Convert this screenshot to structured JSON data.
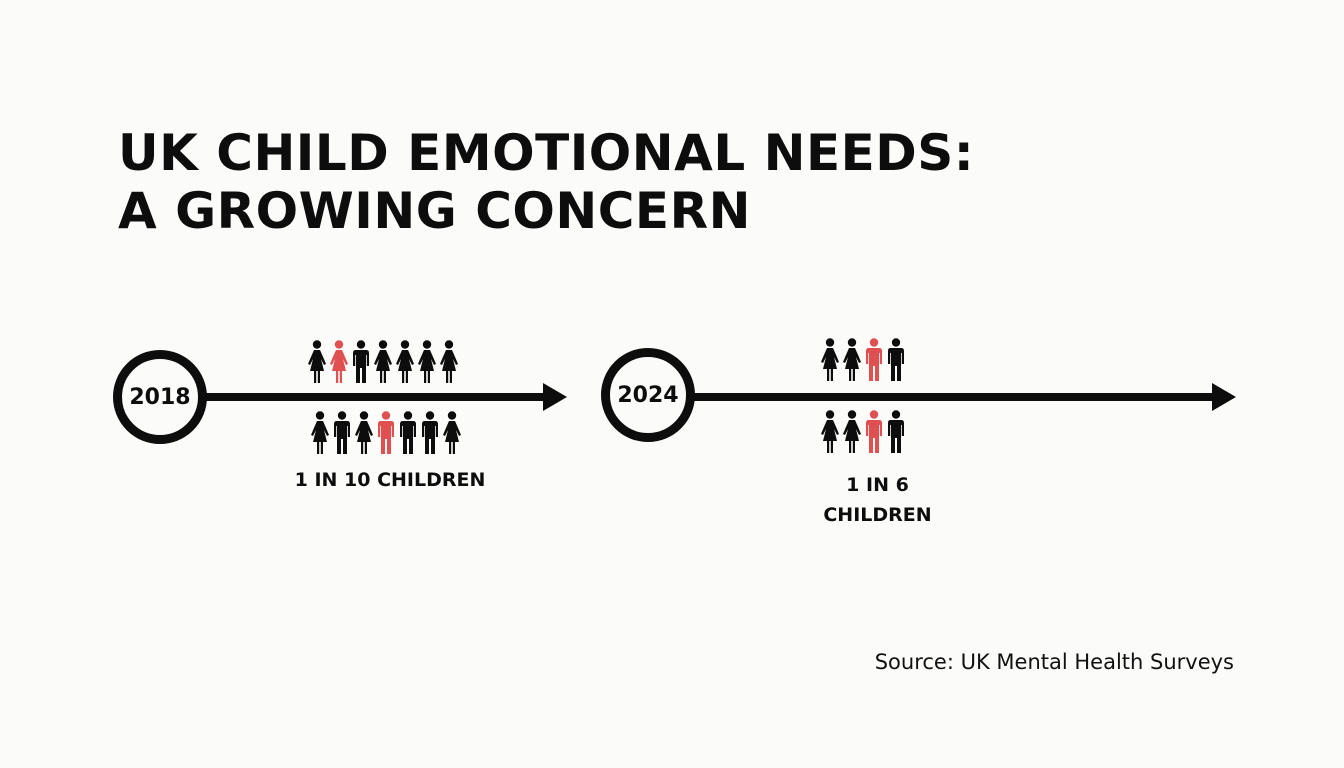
{
  "title": {
    "line1": "UK CHILD EMOTIONAL NEEDS:",
    "line2": "A GROWING CONCERN"
  },
  "colors": {
    "highlight": "#e05050",
    "base": "#0d0d0d",
    "background": "#fbfbfa"
  },
  "timeline": [
    {
      "year": "2018",
      "stat": "1 IN 10 CHILDREN",
      "top_row": [
        "female",
        "female-highlight",
        "male",
        "female",
        "female",
        "female",
        "female"
      ],
      "bottom_row": [
        "female",
        "male",
        "female",
        "male-highlight",
        "male",
        "male",
        "female"
      ]
    },
    {
      "year": "2024",
      "stat_line1": "1 IN 6",
      "stat_line2": "CHILDREN",
      "top_row": [
        "female",
        "female",
        "male-highlight",
        "male"
      ],
      "bottom_row": [
        "female",
        "female",
        "male-highlight",
        "male"
      ]
    }
  ],
  "chart_data": {
    "type": "table",
    "title": "UK CHILD EMOTIONAL NEEDS: A GROWING CONCERN",
    "categories": [
      "2018",
      "2024"
    ],
    "values": [
      "1 in 10 children",
      "1 in 6 children"
    ],
    "values_numeric": [
      0.1,
      0.1667
    ],
    "source": "Source: UK Mental Health Surveys"
  },
  "source": "Source: UK Mental Health Surveys"
}
